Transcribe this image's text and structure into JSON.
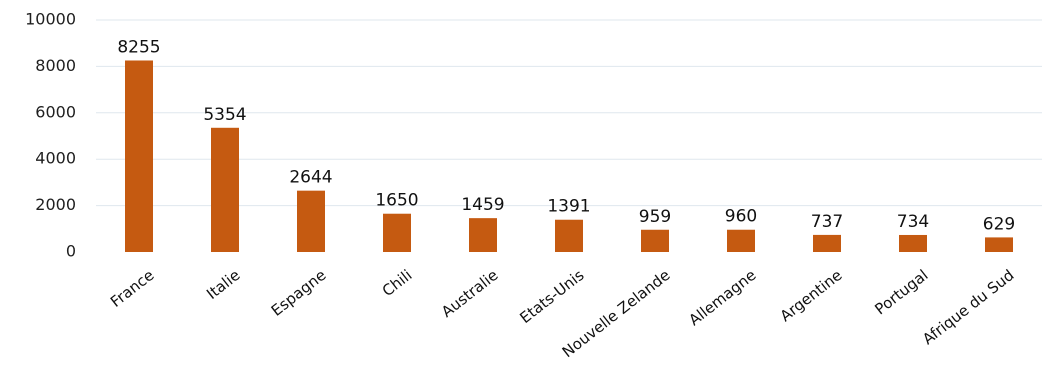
{
  "chart_data": {
    "type": "bar",
    "title": "",
    "xlabel": "",
    "ylabel": "",
    "categories": [
      "France",
      "Italie",
      "Espagne",
      "Chili",
      "Australie",
      "Etats-Unis",
      "Nouvelle Zelande",
      "Allemagne",
      "Argentine",
      "Portugal",
      "Afrique du Sud"
    ],
    "values": [
      8255,
      5354,
      2644,
      1650,
      1459,
      1391,
      959,
      960,
      737,
      734,
      629
    ],
    "data_labels": [
      "8255",
      "5354",
      "2644",
      "1650",
      "1459",
      "1391",
      "959",
      "960",
      "737",
      "734",
      "629"
    ],
    "ylim": [
      0,
      10000
    ],
    "yticks": [
      0,
      2000,
      4000,
      6000,
      8000,
      10000
    ],
    "ytick_labels": [
      "0",
      "2000",
      "4000",
      "6000",
      "8000",
      "10000"
    ],
    "grid": true,
    "legend": "none",
    "colors": {
      "bar": "#c55a11",
      "grid": "#dfe7ee",
      "text": "#111111"
    }
  }
}
